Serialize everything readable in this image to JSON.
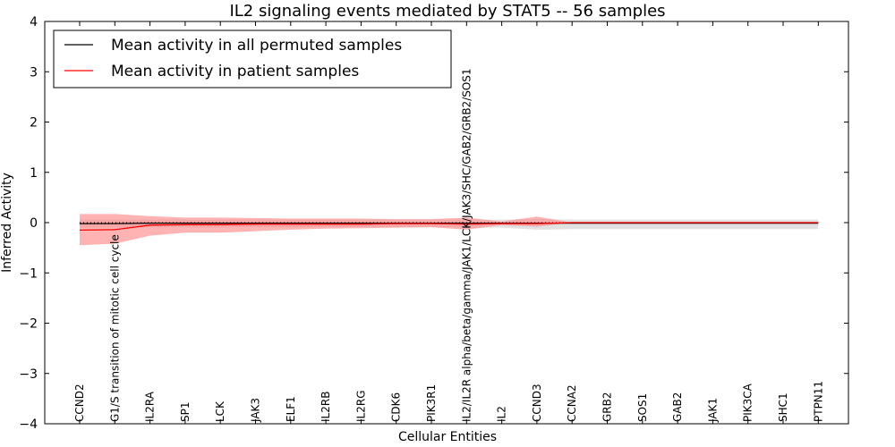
{
  "chart_data": {
    "type": "line",
    "title": "IL2 signaling events mediated by STAT5 -- 56 samples",
    "xlabel": "Cellular Entities",
    "ylabel": "Inferred Activity",
    "ylim": [
      -4,
      4
    ],
    "yticks": [
      "−4",
      "−3",
      "−2",
      "−1",
      "0",
      "1",
      "2",
      "3",
      "4"
    ],
    "categories": [
      "CCND2",
      "G1/S transition of mitotic cell cycle",
      "IL2RA",
      "SP1",
      "LCK",
      "JAK3",
      "ELF1",
      "IL2RB",
      "IL2RG",
      "CDK6",
      "PIK3R1",
      "IL2/IL2R alpha/beta/gamma/JAK1/LCK/JAK3/SHC/GAB2/GRB2/SOS1",
      "IL2",
      "CCND3",
      "CCNA2",
      "GRB2",
      "SOS1",
      "GAB2",
      "JAK1",
      "PIK3CA",
      "SHC1",
      "PTPN11"
    ],
    "legend": {
      "position": "top-left",
      "entries": [
        "Mean activity in all permuted samples",
        "Mean activity in patient samples"
      ]
    },
    "series": [
      {
        "name": "Mean activity in all permuted samples",
        "color": "#000000",
        "band_color": "#c8c8c8",
        "values": [
          -0.02,
          -0.02,
          -0.01,
          -0.01,
          -0.01,
          -0.01,
          -0.01,
          -0.01,
          -0.01,
          -0.01,
          -0.01,
          -0.01,
          -0.01,
          -0.01,
          -0.01,
          -0.01,
          -0.01,
          -0.01,
          -0.01,
          -0.01,
          -0.01,
          -0.01
        ],
        "lower": [
          -0.1,
          -0.1,
          -0.09,
          -0.09,
          -0.09,
          -0.09,
          -0.09,
          -0.09,
          -0.09,
          -0.09,
          -0.09,
          -0.1,
          -0.1,
          -0.14,
          -0.13,
          -0.13,
          -0.13,
          -0.13,
          -0.13,
          -0.13,
          -0.13,
          -0.13
        ],
        "upper": [
          0.06,
          0.06,
          0.06,
          0.06,
          0.06,
          0.06,
          0.06,
          0.06,
          0.06,
          0.06,
          0.06,
          0.06,
          0.06,
          0.07,
          0.06,
          0.06,
          0.06,
          0.06,
          0.06,
          0.06,
          0.06,
          0.06
        ]
      },
      {
        "name": "Mean activity in patient samples",
        "color": "#ff0000",
        "band_color": "#ff8080",
        "values": [
          -0.15,
          -0.14,
          -0.05,
          -0.04,
          -0.04,
          -0.03,
          -0.03,
          -0.03,
          -0.03,
          -0.02,
          -0.02,
          -0.03,
          -0.02,
          -0.02,
          0.0,
          0.0,
          0.0,
          0.0,
          0.0,
          0.0,
          0.0,
          0.0
        ],
        "lower": [
          -0.45,
          -0.42,
          -0.26,
          -0.2,
          -0.2,
          -0.17,
          -0.14,
          -0.12,
          -0.11,
          -0.1,
          -0.09,
          -0.14,
          -0.05,
          -0.08,
          0.0,
          0.0,
          0.0,
          0.0,
          0.0,
          0.0,
          0.0,
          0.0
        ],
        "upper": [
          0.17,
          0.17,
          0.13,
          0.1,
          0.1,
          0.09,
          0.08,
          0.08,
          0.08,
          0.07,
          0.07,
          0.1,
          0.02,
          0.12,
          0.0,
          0.0,
          0.0,
          0.0,
          0.0,
          0.0,
          0.0,
          0.0
        ]
      }
    ]
  }
}
